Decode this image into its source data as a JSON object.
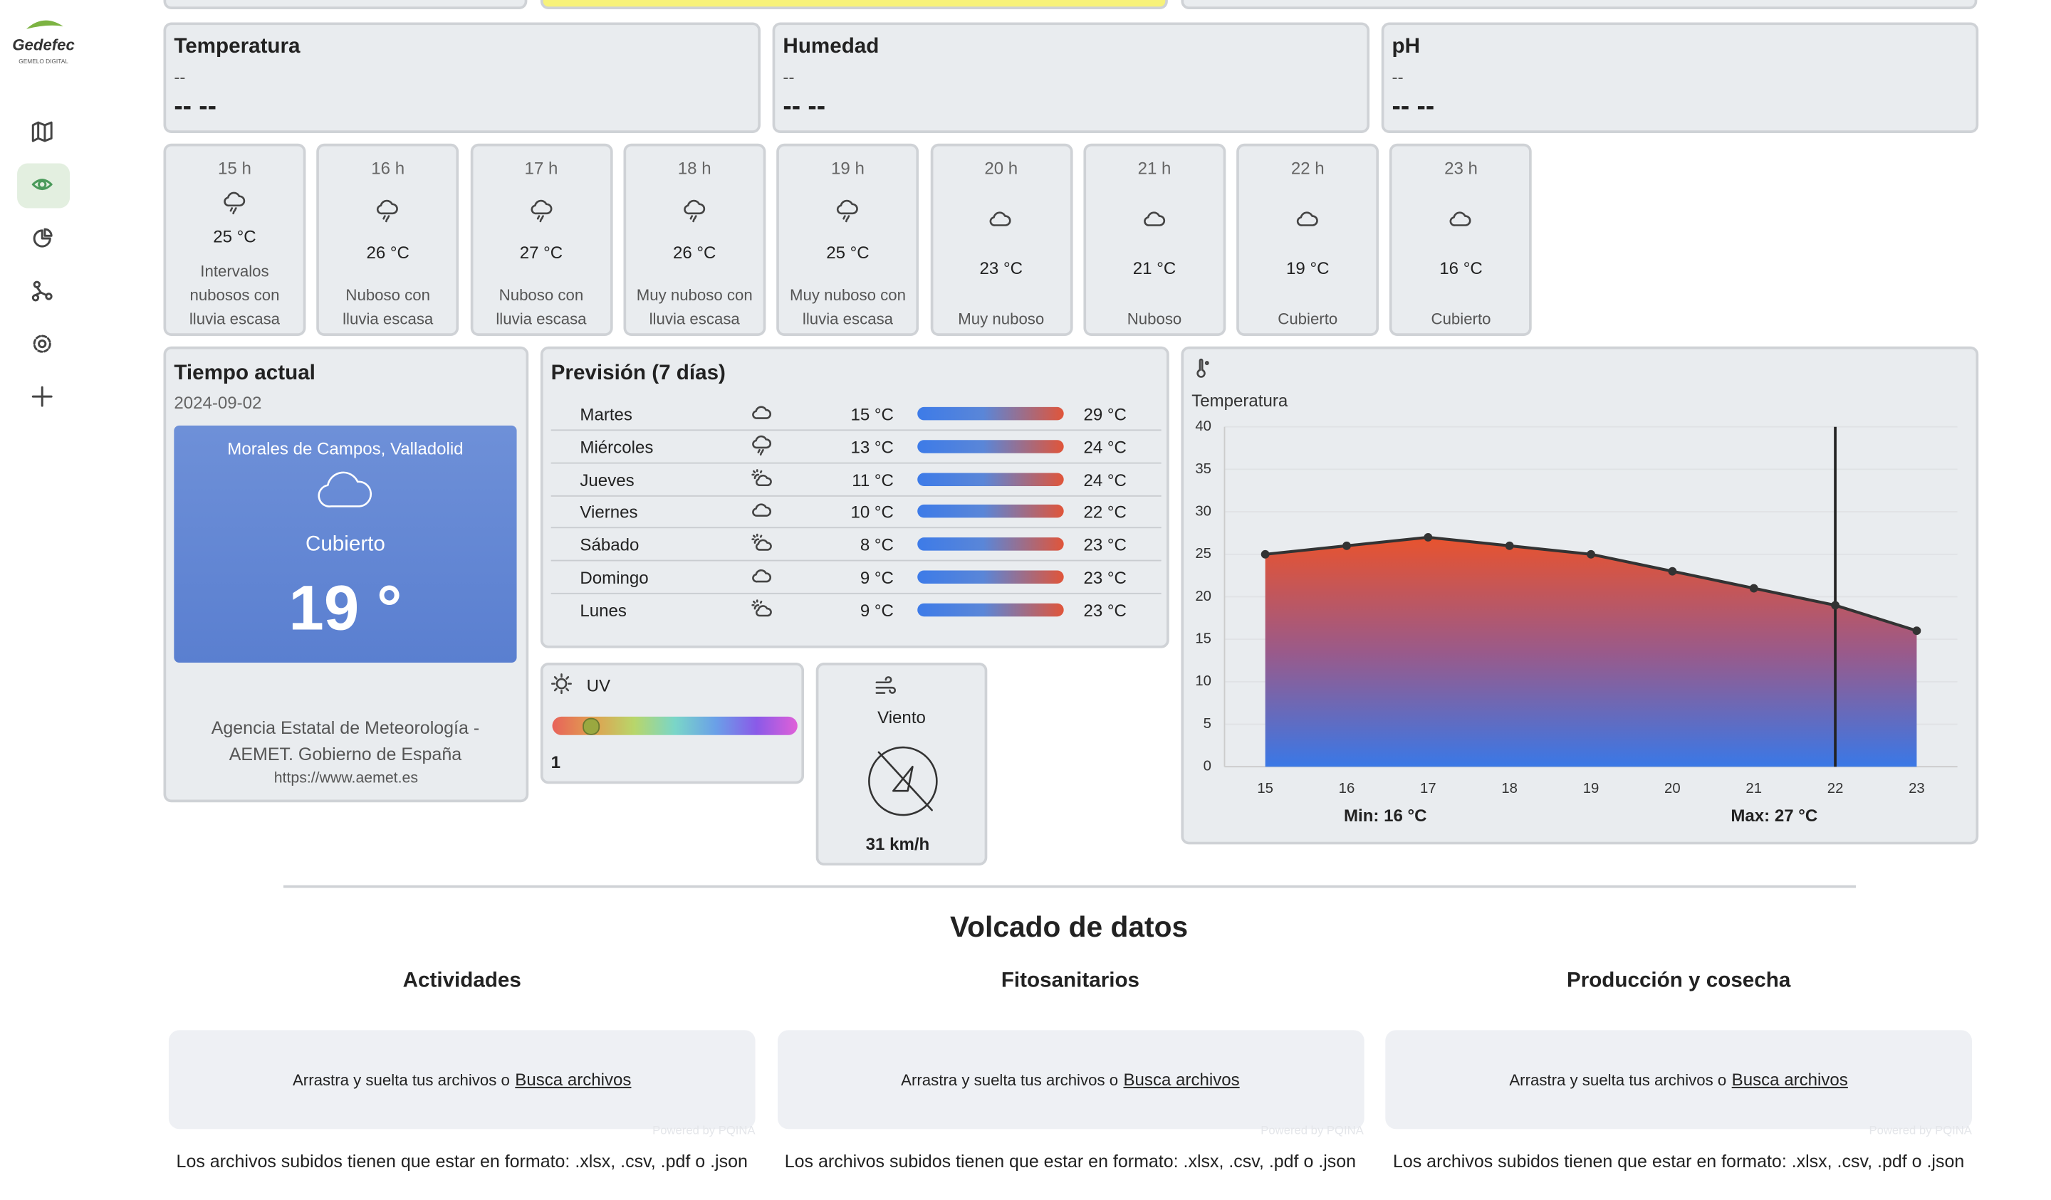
{
  "sidebar": {
    "logo": "Gedefec",
    "logo_sub": "GEMELO DIGITAL"
  },
  "sensors": [
    {
      "title": "Temperatura",
      "sub": "--",
      "value": "-- --"
    },
    {
      "title": "Humedad",
      "sub": "--",
      "value": "-- --"
    },
    {
      "title": "pH",
      "sub": "--",
      "value": "-- --"
    }
  ],
  "hourly": [
    {
      "hour": "15 h",
      "temp": "25 °C",
      "desc": "Intervalos nubosos con lluvia escasa"
    },
    {
      "hour": "16 h",
      "temp": "26 °C",
      "desc": "Nuboso con lluvia escasa"
    },
    {
      "hour": "17 h",
      "temp": "27 °C",
      "desc": "Nuboso con lluvia escasa"
    },
    {
      "hour": "18 h",
      "temp": "26 °C",
      "desc": "Muy nuboso con lluvia escasa"
    },
    {
      "hour": "19 h",
      "temp": "25 °C",
      "desc": "Muy nuboso con lluvia escasa"
    },
    {
      "hour": "20 h",
      "temp": "23 °C",
      "desc": "Muy nuboso"
    },
    {
      "hour": "21 h",
      "temp": "21 °C",
      "desc": "Nuboso"
    },
    {
      "hour": "22 h",
      "temp": "19 °C",
      "desc": "Cubierto"
    },
    {
      "hour": "23 h",
      "temp": "16 °C",
      "desc": "Cubierto"
    }
  ],
  "current": {
    "title": "Tiempo actual",
    "date": "2024-09-02",
    "location": "Morales de Campos, Valladolid",
    "condition": "Cubierto",
    "temp": "19 °",
    "source": "Agencia Estatal de Meteorología - AEMET. Gobierno de España",
    "url": "https://www.aemet.es"
  },
  "forecast": {
    "title": "Previsión (7 días)",
    "days": [
      {
        "day": "Martes",
        "min": "15 °C",
        "max": "29 °C"
      },
      {
        "day": "Miércoles",
        "min": "13 °C",
        "max": "24 °C"
      },
      {
        "day": "Jueves",
        "min": "11 °C",
        "max": "24 °C"
      },
      {
        "day": "Viernes",
        "min": "10 °C",
        "max": "22 °C"
      },
      {
        "day": "Sábado",
        "min": "8 °C",
        "max": "23 °C"
      },
      {
        "day": "Domingo",
        "min": "9 °C",
        "max": "23 °C"
      },
      {
        "day": "Lunes",
        "min": "9 °C",
        "max": "23 °C"
      }
    ]
  },
  "uv": {
    "label": "UV",
    "value": 1
  },
  "wind": {
    "label": "Viento",
    "speed": "31 km/h"
  },
  "chart_data": {
    "type": "line",
    "title": "Temperatura",
    "categories": [
      "15",
      "16",
      "17",
      "18",
      "19",
      "20",
      "21",
      "22",
      "23"
    ],
    "values": [
      25,
      26,
      27,
      26,
      25,
      23,
      21,
      19,
      16
    ],
    "ylim": [
      0,
      40
    ],
    "yticks": [
      0,
      5,
      10,
      15,
      20,
      25,
      30,
      35,
      40
    ],
    "grid": true,
    "color": "#333333",
    "min_label": "Min: 16 °C",
    "max_label": "Max: 27 °C"
  },
  "dump": {
    "title": "Volcado de datos",
    "sections": [
      {
        "title": "Actividades",
        "drop_text": "Arrastra y suelta tus archivos o",
        "link": "Busca archivos",
        "powered": "Powered by PQINA",
        "note": "Los archivos subidos tienen que estar en formato: .xlsx, .csv, .pdf o .json"
      },
      {
        "title": "Fitosanitarios",
        "drop_text": "Arrastra y suelta tus archivos o",
        "link": "Busca archivos",
        "powered": "Powered by PQINA",
        "note": "Los archivos subidos tienen que estar en formato: .xlsx, .csv, .pdf o .json"
      },
      {
        "title": "Producción y cosecha",
        "drop_text": "Arrastra y suelta tus archivos o",
        "link": "Busca archivos",
        "powered": "Powered by PQINA",
        "note": "Los archivos subidos tienen que estar en formato: .xlsx, .csv, .pdf o .json"
      }
    ]
  }
}
